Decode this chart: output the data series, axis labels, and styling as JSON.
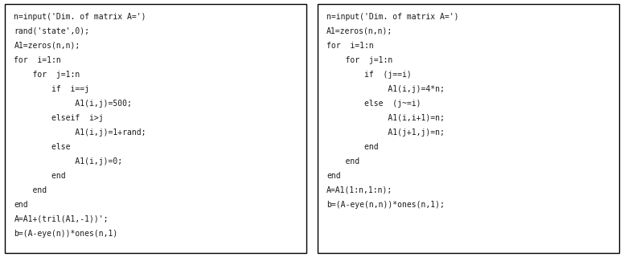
{
  "left_code": [
    "n=input('Dim. of matrix A=')",
    "rand('state',0);",
    "A1=zeros(n,n);",
    "for  i=1:n",
    "    for  j=1:n",
    "        if  i==j",
    "             A1(i,j)=500;",
    "        elseif  i>j",
    "             A1(i,j)=1+rand;",
    "        else",
    "             A1(i,j)=0;",
    "        end",
    "    end",
    "end",
    "A=A1+(tril(A1,-1))';",
    "b=(A-eye(n))*ones(n,1)"
  ],
  "right_code": [
    "n=input('Dim. of matrix A=')",
    "A1=zeros(n,n);",
    "for  i=1:n",
    "    for  j=1:n",
    "        if  (j==i)",
    "             A1(i,j)=4*n;",
    "        else  (j~=i)",
    "             A1(i,i+1)=n;",
    "             A1(j+1,j)=n;",
    "        end",
    "    end",
    "end",
    "A=A1(1:n,1:n);",
    "b=(A-eye(n,n))*ones(n,1);"
  ],
  "bg_color": "#ffffff",
  "box_color": "#000000",
  "text_color": "#1a1a1a",
  "font_size": 7.0,
  "font_family": "monospace",
  "fig_width": 7.76,
  "fig_height": 3.2
}
